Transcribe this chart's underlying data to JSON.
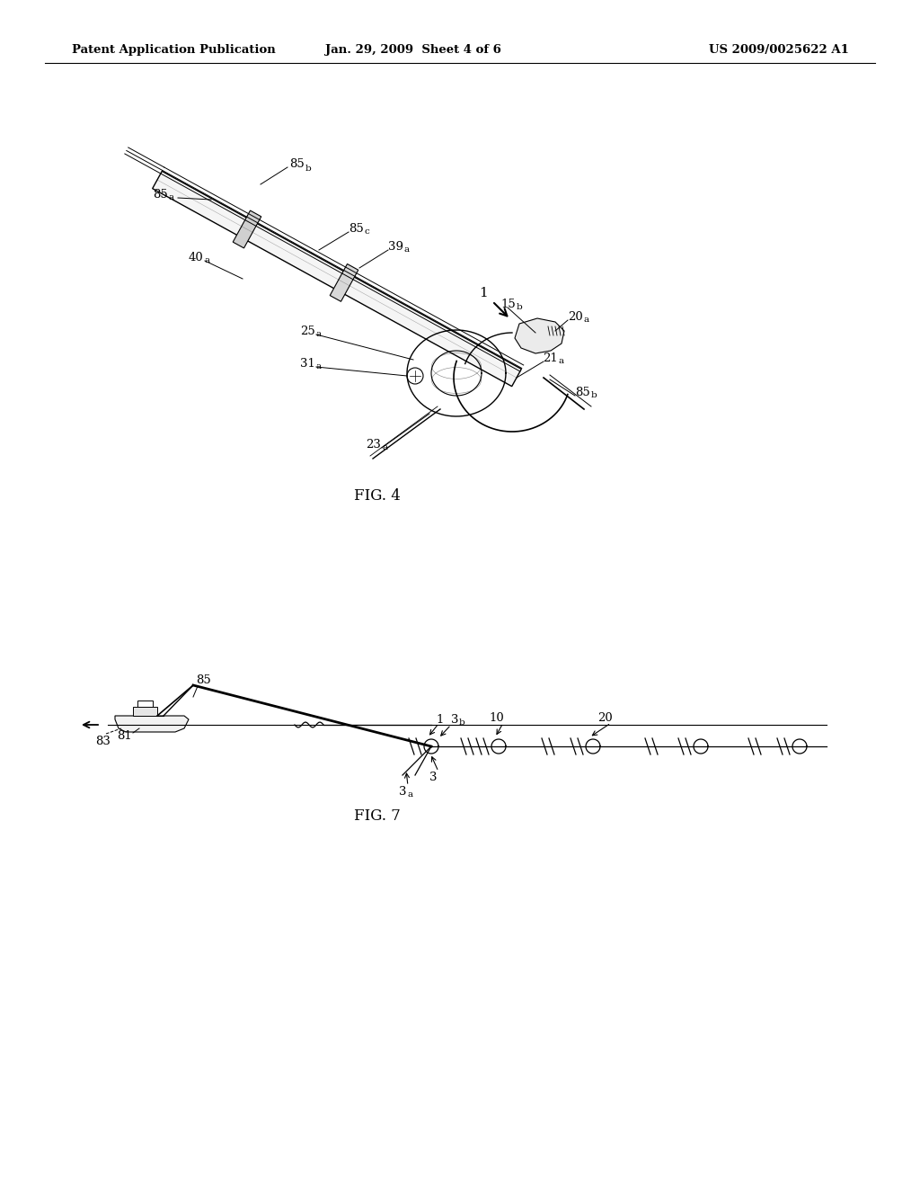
{
  "background_color": "#ffffff",
  "header_left": "Patent Application Publication",
  "header_center": "Jan. 29, 2009  Sheet 4 of 6",
  "header_right": "US 2009/0025622 A1",
  "fig4_caption": "FIG. 4",
  "fig7_caption": "FIG. 7"
}
